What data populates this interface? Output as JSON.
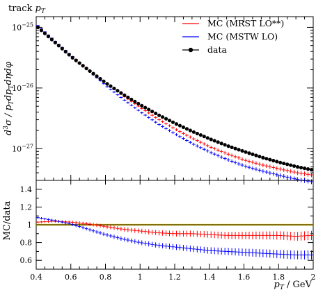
{
  "title": "track pT",
  "title_parts": {
    "base": "track ",
    "var": "p",
    "sub": "T"
  },
  "colors": {
    "mc_mrst": "#ff0000",
    "mc_mstw": "#0000ff",
    "data": "#000000",
    "ratio_ref": "#ffd700"
  },
  "chart_data": [
    {
      "type": "line",
      "panel": "main",
      "ylabel_parts": {
        "a": "d",
        "b": "3",
        "c": "σ / ",
        "d": "p",
        "e": "T",
        "f": "d",
        "g": "p",
        "h": "T",
        "i": "dηdφ"
      },
      "yscale": "log",
      "xlim": [
        0.4,
        2.0
      ],
      "ylim": [
        3e-28,
        1.5e-25
      ],
      "ytick_labels": [
        {
          "base": "10",
          "exp": "−25",
          "v": 1e-25
        },
        {
          "base": "10",
          "exp": "−26",
          "v": 1e-26
        },
        {
          "base": "10",
          "exp": "−27",
          "v": 1e-27
        }
      ],
      "legend_position": "top-right",
      "series": [
        {
          "name": "MC (MRST LO**)",
          "key": "mrst",
          "x": [
            0.41,
            0.51,
            0.61,
            0.71,
            0.81,
            0.91,
            1.01,
            1.11,
            1.21,
            1.31,
            1.41,
            1.51,
            1.61,
            1.71,
            1.81,
            1.91,
            1.99
          ],
          "y": [
            1.03e-25,
            5.8e-26,
            3.3e-26,
            1.95e-26,
            1.17e-26,
            7.2e-27,
            4.6e-27,
            3e-27,
            2.05e-27,
            1.45e-27,
            1.05e-27,
            8.1e-28,
            6.4e-28,
            5.35e-28,
            4.6e-28,
            4e-28,
            3.7e-28
          ]
        },
        {
          "name": "MC (MSTW LO)",
          "key": "mstw",
          "x": [
            0.41,
            0.51,
            0.61,
            0.71,
            0.81,
            0.91,
            1.01,
            1.11,
            1.21,
            1.31,
            1.41,
            1.51,
            1.61,
            1.71,
            1.81,
            1.91,
            1.99
          ],
          "y": [
            1.07e-25,
            5.9e-26,
            3.3e-26,
            1.85e-26,
            1.05e-26,
            6.3e-27,
            3.9e-27,
            2.5e-27,
            1.7e-27,
            1.18e-27,
            8.6e-28,
            6.5e-28,
            5.1e-28,
            4.25e-28,
            3.6e-28,
            3.1e-28,
            2.85e-28
          ]
        },
        {
          "name": "data",
          "key": "data",
          "x": [
            0.41,
            0.51,
            0.61,
            0.71,
            0.81,
            0.91,
            1.01,
            1.11,
            1.21,
            1.31,
            1.41,
            1.51,
            1.61,
            1.71,
            1.81,
            1.91,
            1.99
          ],
          "y": [
            1e-25,
            5.6e-26,
            3.15e-26,
            1.9e-26,
            1.17e-26,
            7.6e-27,
            5.1e-27,
            3.55e-27,
            2.55e-27,
            1.88e-27,
            1.42e-27,
            1.1e-27,
            8.8e-28,
            7.1e-28,
            5.9e-28,
            5e-28,
            4.5e-28
          ]
        }
      ]
    },
    {
      "type": "line",
      "panel": "ratio",
      "ylabel": "MC/data",
      "xlabel_parts": {
        "var": "p",
        "sub": "T",
        "unit": " / GeV"
      },
      "xlim": [
        0.4,
        2.0
      ],
      "ylim": [
        0.5,
        1.5
      ],
      "xticks": [
        0.4,
        0.6,
        0.8,
        1,
        1.2,
        1.4,
        1.6,
        1.8,
        2
      ],
      "xtick_labels": [
        "0.4",
        "0.6",
        "0.8",
        "1",
        "1.2",
        "1.4",
        "1.6",
        "1.8",
        "2"
      ],
      "yticks": [
        0.6,
        0.8,
        1,
        1.2,
        1.4
      ],
      "ytick_labels": [
        "0.6",
        "0.8",
        "1",
        "1.2",
        "1.4"
      ],
      "series": [
        {
          "key": "mrst",
          "x": [
            0.41,
            0.5,
            0.6,
            0.7,
            0.8,
            0.9,
            1.0,
            1.1,
            1.2,
            1.3,
            1.4,
            1.5,
            1.6,
            1.7,
            1.8,
            1.9,
            1.99
          ],
          "y": [
            1.03,
            1.04,
            1.03,
            1.01,
            0.98,
            0.95,
            0.93,
            0.91,
            0.9,
            0.9,
            0.89,
            0.88,
            0.88,
            0.88,
            0.88,
            0.87,
            0.88
          ]
        },
        {
          "key": "mstw",
          "x": [
            0.41,
            0.5,
            0.6,
            0.7,
            0.8,
            0.9,
            1.0,
            1.1,
            1.2,
            1.3,
            1.4,
            1.5,
            1.6,
            1.7,
            1.8,
            1.9,
            1.99
          ],
          "y": [
            1.08,
            1.05,
            1.01,
            0.95,
            0.89,
            0.84,
            0.8,
            0.77,
            0.75,
            0.73,
            0.71,
            0.7,
            0.69,
            0.68,
            0.67,
            0.66,
            0.66
          ]
        }
      ]
    }
  ]
}
